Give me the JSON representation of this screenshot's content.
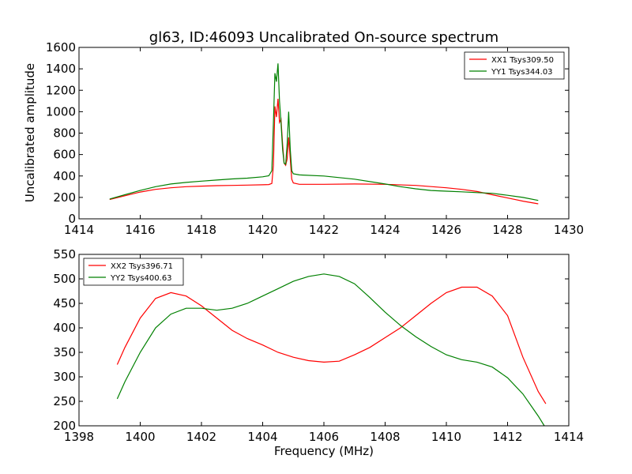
{
  "chart_data": [
    {
      "type": "line",
      "title": "gl63, ID:46093 Uncalibrated On-source spectrum",
      "xlabel": "",
      "ylabel": "Uncalibrated amplitude",
      "xlim": [
        1414,
        1430
      ],
      "ylim": [
        0,
        1600
      ],
      "xticks": [
        1414,
        1416,
        1418,
        1420,
        1422,
        1424,
        1426,
        1428,
        1430
      ],
      "yticks": [
        0,
        200,
        400,
        600,
        800,
        1000,
        1200,
        1400,
        1600
      ],
      "legend_position": "top-right",
      "grid": false,
      "series": [
        {
          "name": "XX1 Tsys309.50",
          "color": "#ff0000",
          "points": [
            [
              1415.0,
              180
            ],
            [
              1415.5,
              215
            ],
            [
              1416,
              250
            ],
            [
              1416.5,
              275
            ],
            [
              1417,
              290
            ],
            [
              1417.5,
              300
            ],
            [
              1418,
              305
            ],
            [
              1418.5,
              310
            ],
            [
              1419,
              312
            ],
            [
              1419.5,
              315
            ],
            [
              1420,
              318
            ],
            [
              1420.2,
              320
            ],
            [
              1420.3,
              330
            ],
            [
              1420.35,
              500
            ],
            [
              1420.4,
              1050
            ],
            [
              1420.45,
              950
            ],
            [
              1420.5,
              1120
            ],
            [
              1420.55,
              900
            ],
            [
              1420.6,
              930
            ],
            [
              1420.65,
              700
            ],
            [
              1420.7,
              520
            ],
            [
              1420.75,
              500
            ],
            [
              1420.8,
              560
            ],
            [
              1420.85,
              760
            ],
            [
              1420.9,
              560
            ],
            [
              1420.95,
              370
            ],
            [
              1421.0,
              335
            ],
            [
              1421.2,
              322
            ],
            [
              1422,
              322
            ],
            [
              1423,
              325
            ],
            [
              1424,
              322
            ],
            [
              1425,
              312
            ],
            [
              1426,
              290
            ],
            [
              1426.5,
              275
            ],
            [
              1427,
              255
            ],
            [
              1427.5,
              225
            ],
            [
              1428,
              195
            ],
            [
              1428.5,
              165
            ],
            [
              1429.0,
              140
            ]
          ]
        },
        {
          "name": "YY1 Tsys344.03",
          "color": "#008000",
          "points": [
            [
              1415.0,
              185
            ],
            [
              1415.5,
              225
            ],
            [
              1416,
              265
            ],
            [
              1416.5,
              300
            ],
            [
              1417,
              325
            ],
            [
              1417.5,
              340
            ],
            [
              1418,
              352
            ],
            [
              1418.5,
              362
            ],
            [
              1419,
              372
            ],
            [
              1419.5,
              380
            ],
            [
              1420,
              392
            ],
            [
              1420.2,
              402
            ],
            [
              1420.3,
              450
            ],
            [
              1420.35,
              900
            ],
            [
              1420.4,
              1360
            ],
            [
              1420.45,
              1280
            ],
            [
              1420.5,
              1450
            ],
            [
              1420.55,
              1100
            ],
            [
              1420.6,
              900
            ],
            [
              1420.65,
              650
            ],
            [
              1420.7,
              520
            ],
            [
              1420.75,
              510
            ],
            [
              1420.8,
              700
            ],
            [
              1420.85,
              1000
            ],
            [
              1420.9,
              650
            ],
            [
              1420.95,
              450
            ],
            [
              1421.0,
              420
            ],
            [
              1421.2,
              410
            ],
            [
              1422,
              400
            ],
            [
              1423,
              370
            ],
            [
              1424,
              325
            ],
            [
              1424.5,
              300
            ],
            [
              1425,
              280
            ],
            [
              1425.5,
              265
            ],
            [
              1426,
              258
            ],
            [
              1426.5,
              252
            ],
            [
              1427,
              245
            ],
            [
              1427.5,
              238
            ],
            [
              1428,
              220
            ],
            [
              1428.5,
              200
            ],
            [
              1429.0,
              172
            ]
          ]
        }
      ]
    },
    {
      "type": "line",
      "title": "",
      "xlabel": "Frequency (MHz)",
      "ylabel": "",
      "xlim": [
        1398,
        1414
      ],
      "ylim": [
        200,
        550
      ],
      "xticks": [
        1398,
        1400,
        1402,
        1404,
        1406,
        1408,
        1410,
        1412,
        1414
      ],
      "yticks": [
        200,
        250,
        300,
        350,
        400,
        450,
        500,
        550
      ],
      "legend_position": "top-left",
      "grid": false,
      "series": [
        {
          "name": "XX2 Tsys396.71",
          "color": "#ff0000",
          "points": [
            [
              1399.25,
              325
            ],
            [
              1399.5,
              360
            ],
            [
              1400,
              420
            ],
            [
              1400.5,
              460
            ],
            [
              1401,
              472
            ],
            [
              1401.5,
              465
            ],
            [
              1402,
              445
            ],
            [
              1402.5,
              420
            ],
            [
              1403,
              395
            ],
            [
              1403.5,
              378
            ],
            [
              1404,
              365
            ],
            [
              1404.5,
              350
            ],
            [
              1405,
              340
            ],
            [
              1405.5,
              333
            ],
            [
              1406,
              330
            ],
            [
              1406.5,
              332
            ],
            [
              1407,
              345
            ],
            [
              1407.5,
              360
            ],
            [
              1408,
              380
            ],
            [
              1408.5,
              400
            ],
            [
              1409,
              425
            ],
            [
              1409.5,
              450
            ],
            [
              1410,
              472
            ],
            [
              1410.5,
              483
            ],
            [
              1411,
              483
            ],
            [
              1411.5,
              465
            ],
            [
              1412,
              425
            ],
            [
              1412.5,
              340
            ],
            [
              1413,
              270
            ],
            [
              1413.25,
              245
            ]
          ]
        },
        {
          "name": "YY2 Tsys400.63",
          "color": "#008000",
          "points": [
            [
              1399.25,
              255
            ],
            [
              1399.5,
              290
            ],
            [
              1400,
              350
            ],
            [
              1400.5,
              400
            ],
            [
              1401,
              428
            ],
            [
              1401.5,
              440
            ],
            [
              1402,
              440
            ],
            [
              1402.5,
              436
            ],
            [
              1403,
              440
            ],
            [
              1403.5,
              450
            ],
            [
              1404,
              465
            ],
            [
              1404.5,
              480
            ],
            [
              1405,
              495
            ],
            [
              1405.5,
              505
            ],
            [
              1406,
              510
            ],
            [
              1406.5,
              505
            ],
            [
              1407,
              490
            ],
            [
              1407.5,
              462
            ],
            [
              1408,
              432
            ],
            [
              1408.5,
              405
            ],
            [
              1409,
              382
            ],
            [
              1409.5,
              362
            ],
            [
              1410,
              345
            ],
            [
              1410.5,
              335
            ],
            [
              1411,
              330
            ],
            [
              1411.5,
              320
            ],
            [
              1412,
              298
            ],
            [
              1412.5,
              265
            ],
            [
              1413,
              220
            ],
            [
              1413.2,
              200
            ]
          ]
        }
      ]
    }
  ]
}
